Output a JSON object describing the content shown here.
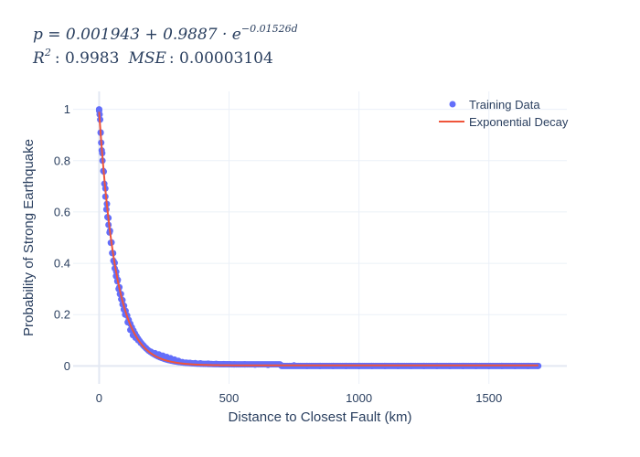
{
  "chart_data": {
    "type": "scatter",
    "title_line1": "p = 0.001943 + 0.9887 · e^(−0.01526d)",
    "title_line2": "R² : 0.9983  MSE : 0.00003104",
    "title_parts": {
      "p_eq": "p = 0.001943 + 0.9887 · e",
      "exponent": "−0.01526d",
      "r2_label": "R",
      "r2_sup": "2",
      "r2_value": ": 0.9983",
      "mse_label": "MSE",
      "mse_value": ": 0.00003104"
    },
    "xlabel": "Distance to Closest Fault (km)",
    "ylabel": "Probability of Strong Earthquake",
    "xlim": [
      -100,
      1800
    ],
    "ylim": [
      -0.07,
      1.07
    ],
    "x_ticks": [
      0,
      500,
      1000,
      1500
    ],
    "x_tick_labels": [
      "0",
      "500",
      "1000",
      "1500"
    ],
    "y_ticks": [
      0,
      0.2,
      0.4,
      0.6,
      0.8,
      1
    ],
    "y_tick_labels": [
      "0",
      "0.2",
      "0.4",
      "0.6",
      "0.8",
      "1"
    ],
    "grid": true,
    "legend_position": "top-right",
    "model": {
      "a": 0.001943,
      "b": 0.9887,
      "k": 0.01526,
      "x_max": 1690
    },
    "series": [
      {
        "name": "Training Data",
        "kind": "markers",
        "color": "#636efa",
        "x": [
          0,
          2,
          4,
          6,
          8,
          10,
          13,
          16,
          20,
          24,
          28,
          32,
          36,
          40,
          45,
          50,
          55,
          60,
          65,
          70,
          75,
          80,
          85,
          90,
          95,
          100,
          110,
          120,
          130,
          140,
          150,
          160,
          170,
          180,
          190,
          200,
          215,
          230,
          245,
          260,
          275,
          290,
          305,
          320,
          335,
          350,
          370,
          390,
          420,
          450,
          480,
          520,
          560,
          600,
          650,
          700,
          750,
          800,
          850,
          900,
          950,
          1000,
          1050,
          1100,
          1150,
          1200,
          1250,
          1300,
          1350,
          1400,
          1450,
          1500,
          1550,
          1600,
          1650,
          1690
        ],
        "y": [
          1.0,
          0.98,
          0.96,
          0.91,
          0.87,
          0.84,
          0.8,
          0.76,
          0.71,
          0.66,
          0.61,
          0.58,
          0.55,
          0.52,
          0.48,
          0.44,
          0.41,
          0.38,
          0.35,
          0.33,
          0.3,
          0.28,
          0.26,
          0.24,
          0.22,
          0.2,
          0.17,
          0.14,
          0.12,
          0.11,
          0.1,
          0.09,
          0.08,
          0.07,
          0.06,
          0.055,
          0.05,
          0.045,
          0.04,
          0.035,
          0.03,
          0.025,
          0.02,
          0.015,
          0.013,
          0.012,
          0.011,
          0.01,
          0.009,
          0.008,
          0.007,
          0.006,
          0.006,
          0.005,
          0.004,
          0.003,
          0.002,
          0.0,
          0.0,
          0.0,
          0.0,
          0.0,
          0.0,
          0.0,
          0.0,
          0.0,
          0.0,
          0.0,
          0.0,
          0.0,
          0.0,
          0.0,
          0.0,
          0.0,
          0.0,
          0.0
        ]
      },
      {
        "name": "Exponential Decay",
        "kind": "line",
        "color": "#ef553b"
      }
    ]
  }
}
